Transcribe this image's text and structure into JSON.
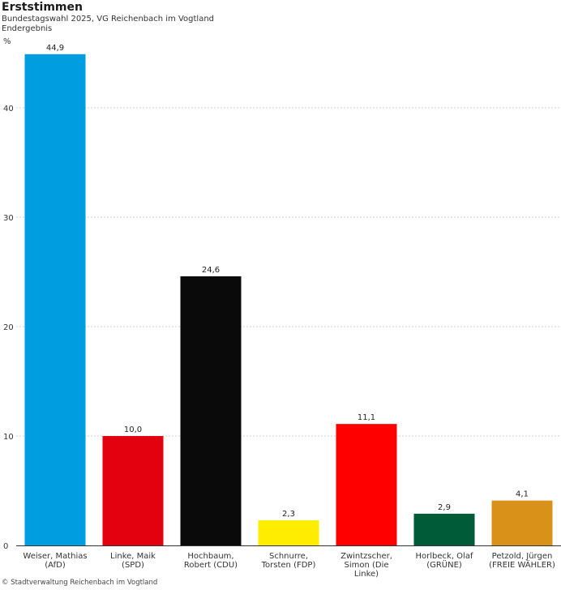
{
  "header": {
    "title": "Erststimmen",
    "subtitle": "Bundestagswahl 2025, VG Reichenbach im Vogtland",
    "subtitle2": "Endergebnis",
    "unit": "%"
  },
  "footer": {
    "source": "© Stadtverwaltung Reichenbach im Vogtland"
  },
  "chart_data": {
    "type": "bar",
    "title": "Erststimmen",
    "ylabel": "%",
    "ylim": [
      0,
      45
    ],
    "yticks": [
      0,
      10,
      20,
      30,
      40
    ],
    "grid": true,
    "categories": [
      [
        "Weiser, Mathias",
        "(AfD)"
      ],
      [
        "Linke, Maik",
        "(SPD)"
      ],
      [
        "Hochbaum,",
        "Robert (CDU)"
      ],
      [
        "Schnurre,",
        "Torsten (FDP)"
      ],
      [
        "Zwintzscher,",
        "Simon (Die",
        "Linke)"
      ],
      [
        "Horlbeck, Olaf",
        "(GRÜNE)"
      ],
      [
        "Petzold, Jürgen",
        "(FREIE WÄHLER)"
      ]
    ],
    "values": [
      44.9,
      10.0,
      24.6,
      2.3,
      11.1,
      2.9,
      4.1
    ],
    "value_labels": [
      "44,9",
      "10,0",
      "24,6",
      "2,3",
      "11,1",
      "2,9",
      "4,1"
    ],
    "colors": [
      "#009ee0",
      "#e3000f",
      "#0a0a0a",
      "#ffed00",
      "#ff0000",
      "#005c38",
      "#d99119"
    ]
  }
}
